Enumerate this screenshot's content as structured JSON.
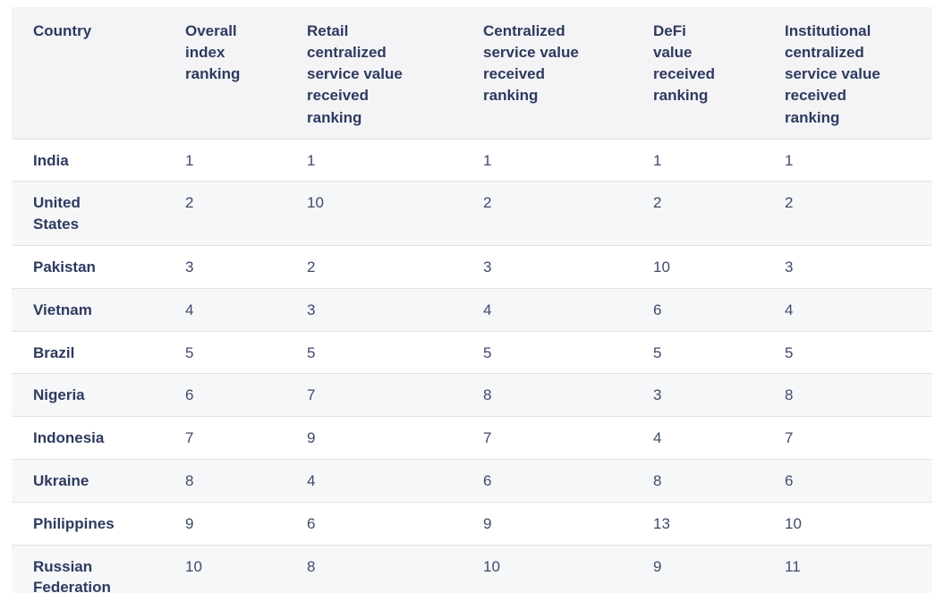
{
  "colors": {
    "header_background": "#f4f4f6",
    "stripe_background": "#f6f7f9",
    "row_border": "#e2e3e7",
    "heading_text": "#2e3a5f",
    "value_text": "#3f4a6a",
    "page_background": "#ffffff"
  },
  "chart_data": {
    "type": "table",
    "title": "",
    "columns": [
      "Country",
      "Overall index ranking",
      "Retail centralized service value received ranking",
      "Centralized service value received ranking",
      "DeFi value received ranking",
      "Institutional centralized service value received ranking"
    ],
    "rows": [
      [
        "India",
        1,
        1,
        1,
        1,
        1
      ],
      [
        "United States",
        2,
        10,
        2,
        2,
        2
      ],
      [
        "Pakistan",
        3,
        2,
        3,
        10,
        3
      ],
      [
        "Vietnam",
        4,
        3,
        4,
        6,
        4
      ],
      [
        "Brazil",
        5,
        5,
        5,
        5,
        5
      ],
      [
        "Nigeria",
        6,
        7,
        8,
        3,
        8
      ],
      [
        "Indonesia",
        7,
        9,
        7,
        4,
        7
      ],
      [
        "Ukraine",
        8,
        4,
        6,
        8,
        6
      ],
      [
        "Philippines",
        9,
        6,
        9,
        13,
        10
      ],
      [
        "Russian Federation",
        10,
        8,
        10,
        9,
        11
      ]
    ],
    "layout": {
      "striped_rows": "even rows shaded",
      "header_wrapped_multiline": true,
      "alignment": "left"
    }
  }
}
